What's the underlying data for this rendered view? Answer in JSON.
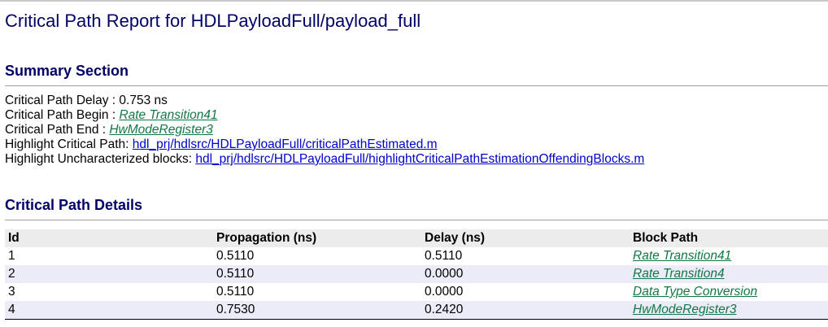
{
  "title": "Critical Path Report for HDLPayloadFull/payload_full",
  "summary": {
    "heading": "Summary Section",
    "delay_label": "Critical Path Delay : ",
    "delay_value": "0.753 ns",
    "begin_label": "Critical Path Begin : ",
    "begin_link": "Rate Transition41",
    "end_label": "Critical Path End : ",
    "end_link": "HwModeRegister3",
    "highlight_label": "Highlight Critical Path: ",
    "highlight_link": "hdl_prj/hdlsrc/HDLPayloadFull/criticalPathEstimated.m",
    "uncharacterized_label": "Highlight Uncharacterized blocks: ",
    "uncharacterized_link": "hdl_prj/hdlsrc/HDLPayloadFull/highlightCriticalPathEstimationOffendingBlocks.m"
  },
  "details": {
    "heading": "Critical Path Details",
    "columns": [
      "Id",
      "Propagation (ns)",
      "Delay (ns)",
      "Block Path"
    ],
    "rows": [
      [
        "1",
        "0.5110",
        "0.5110",
        "Rate Transition41"
      ],
      [
        "2",
        "0.5110",
        "0.0000",
        "Rate Transition4"
      ],
      [
        "3",
        "0.5110",
        "0.0000",
        "Data Type Conversion"
      ],
      [
        "4",
        "0.7530",
        "0.2420",
        "HwModeRegister3"
      ]
    ]
  },
  "colors": {
    "heading": "#000066",
    "model_link": "#117744",
    "file_link": "#0000cc",
    "header_bg": "#ececec",
    "alt_row_bg": "#ececf8"
  }
}
